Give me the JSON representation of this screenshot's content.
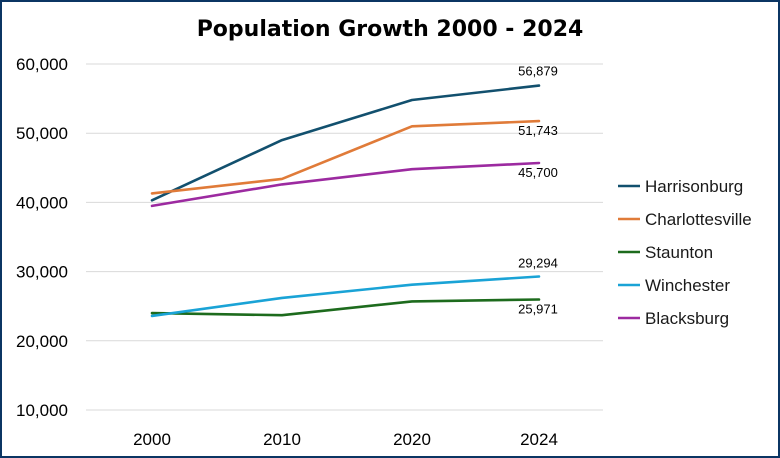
{
  "chart_data": {
    "type": "line",
    "title": "Population Growth 2000 - 2024",
    "xlabel": "",
    "ylabel": "",
    "categories": [
      "2000",
      "2010",
      "2020",
      "2024"
    ],
    "ylim": [
      10000,
      60000
    ],
    "yticks": [
      "60,000",
      "50,000",
      "40,000",
      "30,000",
      "20,000",
      "10,000"
    ],
    "ytick_values": [
      60000,
      50000,
      40000,
      30000,
      20000,
      10000
    ],
    "grid": true,
    "legend_position": "right",
    "series": [
      {
        "name": "Harrisonburg",
        "color": "#12506e",
        "values": [
          40300,
          49000,
          54800,
          56879
        ],
        "end_label": "56,879"
      },
      {
        "name": "Charlottesville",
        "color": "#e07b39",
        "values": [
          41300,
          43400,
          51000,
          51743
        ],
        "end_label": "51,743"
      },
      {
        "name": "Staunton",
        "color": "#1d6b1d",
        "values": [
          24000,
          23700,
          25700,
          25971
        ],
        "end_label": "25,971"
      },
      {
        "name": "Winchester",
        "color": "#1aa3d6",
        "values": [
          23600,
          26200,
          28100,
          29294
        ],
        "end_label": "29,294"
      },
      {
        "name": "Blacksburg",
        "color": "#9c2aa0",
        "values": [
          39500,
          42600,
          44800,
          45700
        ],
        "end_label": "45,700"
      }
    ]
  }
}
